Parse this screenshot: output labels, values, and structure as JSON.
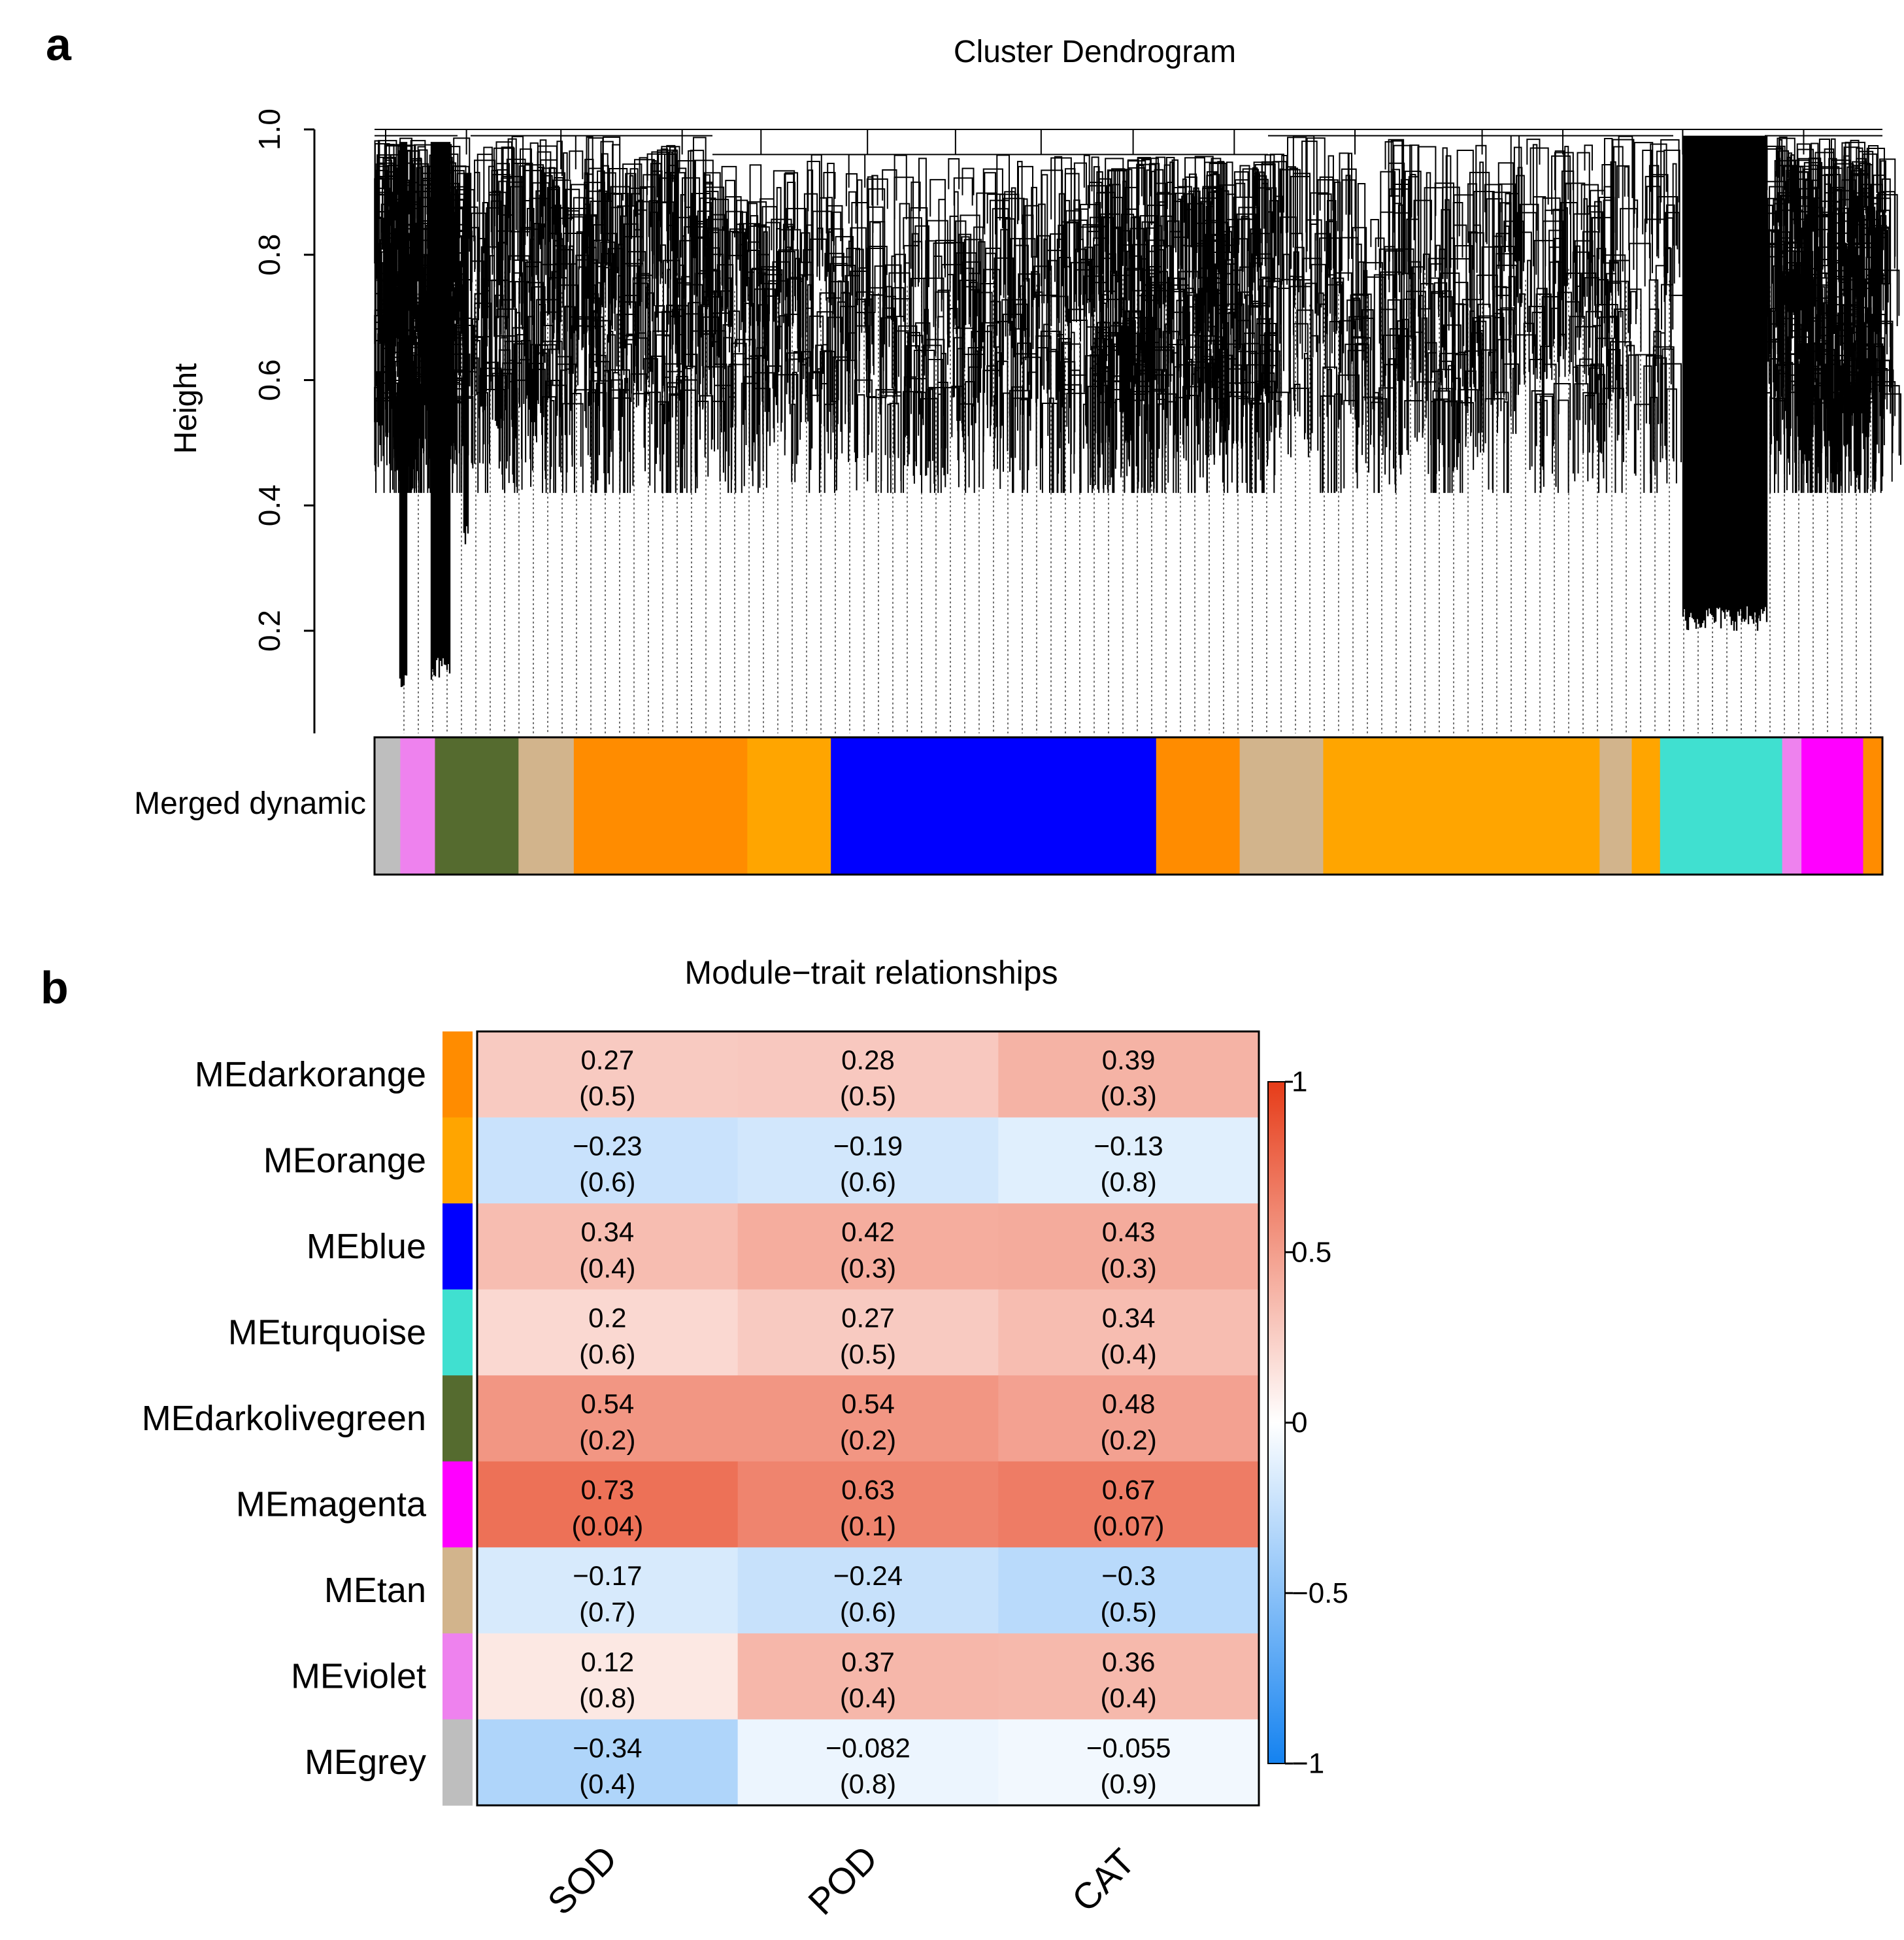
{
  "panels": {
    "a": {
      "letter": "a",
      "title": "Cluster Dendrogram",
      "ylabel": "Height",
      "color_row_label": "Merged dynamic"
    },
    "b": {
      "letter": "b",
      "title": "Module−trait relationships"
    }
  },
  "chart_data": [
    {
      "type": "dendrogram",
      "title": "Cluster Dendrogram",
      "ylabel": "Height",
      "ylim": [
        0.03,
        1.0
      ],
      "yticks": [
        {
          "value": 0.2,
          "label": "0.2"
        },
        {
          "value": 0.4,
          "label": "0.4"
        },
        {
          "value": 0.6,
          "label": "0.6"
        },
        {
          "value": 0.8,
          "label": "0.8"
        },
        {
          "value": 1.0,
          "label": "1.0"
        }
      ],
      "color_row_label": "Merged dynamic",
      "module_colors": {
        "grey": "#bebebe",
        "violet": "#ee82ee",
        "darkolivegreen": "#556b2f",
        "tan": "#d2b48c",
        "darkorange": "#ff8c00",
        "orange": "#ffa500",
        "blue": "#0000ff",
        "turquoise": "#40e0d0",
        "magenta": "#ff00ff"
      },
      "color_blocks": [
        {
          "module": "grey",
          "width": 2.0
        },
        {
          "module": "violet",
          "width": 2.7
        },
        {
          "module": "darkolivegreen",
          "width": 6.5
        },
        {
          "module": "tan",
          "width": 4.3
        },
        {
          "module": "darkorange",
          "width": 13.5
        },
        {
          "module": "orange",
          "width": 6.5
        },
        {
          "module": "blue",
          "width": 25.3
        },
        {
          "module": "darkorange",
          "width": 6.5
        },
        {
          "module": "tan",
          "width": 6.5
        },
        {
          "module": "orange",
          "width": 21.5
        },
        {
          "module": "tan",
          "width": 2.5
        },
        {
          "module": "orange",
          "width": 2.2
        },
        {
          "module": "turquoise",
          "width": 9.5
        },
        {
          "module": "violet",
          "width": 1.5
        },
        {
          "module": "magenta",
          "width": 4.8
        },
        {
          "module": "darkorange",
          "width": 1.5
        }
      ]
    },
    {
      "type": "heatmap",
      "title": "Module−trait relationships",
      "columns": [
        "SOD",
        "POD",
        "CAT"
      ],
      "rows": [
        {
          "label": "MEdarkorange",
          "color": "#ff8c00",
          "cor": [
            "0.27",
            "0.28",
            "0.39"
          ],
          "p": [
            "(0.5)",
            "(0.5)",
            "(0.3)"
          ]
        },
        {
          "label": "MEorange",
          "color": "#ffa500",
          "cor": [
            "−0.23",
            "−0.19",
            "−0.13"
          ],
          "p": [
            "(0.6)",
            "(0.6)",
            "(0.8)"
          ]
        },
        {
          "label": "MEblue",
          "color": "#0000ff",
          "cor": [
            "0.34",
            "0.42",
            "0.43"
          ],
          "p": [
            "(0.4)",
            "(0.3)",
            "(0.3)"
          ]
        },
        {
          "label": "MEturquoise",
          "color": "#40e0d0",
          "cor": [
            "0.2",
            "0.27",
            "0.34"
          ],
          "p": [
            "(0.6)",
            "(0.5)",
            "(0.4)"
          ]
        },
        {
          "label": "MEdarkolivegreen",
          "color": "#556b2f",
          "cor": [
            "0.54",
            "0.54",
            "0.48"
          ],
          "p": [
            "(0.2)",
            "(0.2)",
            "(0.2)"
          ]
        },
        {
          "label": "MEmagenta",
          "color": "#ff00ff",
          "cor": [
            "0.73",
            "0.63",
            "0.67"
          ],
          "p": [
            "(0.04)",
            "(0.1)",
            "(0.07)"
          ]
        },
        {
          "label": "MEtan",
          "color": "#d2b48c",
          "cor": [
            "−0.17",
            "−0.24",
            "−0.3"
          ],
          "p": [
            "(0.7)",
            "(0.6)",
            "(0.5)"
          ]
        },
        {
          "label": "MEviolet",
          "color": "#ee82ee",
          "cor": [
            "0.12",
            "0.37",
            "0.36"
          ],
          "p": [
            "(0.8)",
            "(0.4)",
            "(0.4)"
          ]
        },
        {
          "label": "MEgrey",
          "color": "#bebebe",
          "cor": [
            "−0.34",
            "−0.082",
            "−0.055"
          ],
          "p": [
            "(0.4)",
            "(0.8)",
            "(0.9)"
          ]
        }
      ],
      "colorbar": {
        "range": [
          -1,
          1
        ],
        "ticks": [
          {
            "value": 1,
            "label": "1"
          },
          {
            "value": 0.5,
            "label": "0.5"
          },
          {
            "value": 0,
            "label": "0"
          },
          {
            "value": -0.5,
            "label": "−0.5"
          },
          {
            "value": -1,
            "label": "−1"
          }
        ]
      }
    }
  ]
}
